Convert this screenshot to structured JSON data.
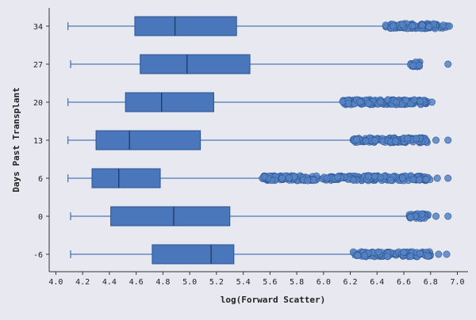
{
  "chart_data": {
    "type": "boxplot",
    "orientation": "horizontal",
    "xlabel": "log(Forward Scatter)",
    "ylabel": "Days Past Transplant",
    "xlim": [
      3.95,
      7.08
    ],
    "x_ticks": [
      "4.0",
      "4.2",
      "4.4",
      "4.6",
      "4.8",
      "5.0",
      "5.2",
      "5.4",
      "5.6",
      "5.8",
      "6.0",
      "6.2",
      "6.4",
      "6.6",
      "6.8",
      "7.0"
    ],
    "categories": [
      "34",
      "27",
      "20",
      "13",
      "6",
      "0",
      "-6"
    ],
    "box_color": "#4a77bb",
    "edge_color": "#2b5593",
    "background": "#e8e8f0",
    "boxes": [
      {
        "label": "34",
        "whisker_low": 4.09,
        "q1": 4.59,
        "median": 4.89,
        "q3": 5.35,
        "whisker_high": 6.46,
        "outliers": {
          "dense_from": 6.46,
          "dense_to": 6.93,
          "sparse": [
            6.94
          ]
        }
      },
      {
        "label": "27",
        "whisker_low": 4.11,
        "q1": 4.63,
        "median": 4.98,
        "q3": 5.45,
        "whisker_high": 6.65,
        "outliers": {
          "dense_from": 6.65,
          "dense_to": 6.72,
          "sparse": [
            6.93
          ]
        }
      },
      {
        "label": "20",
        "whisker_low": 4.09,
        "q1": 4.52,
        "median": 4.79,
        "q3": 5.18,
        "whisker_high": 6.14,
        "outliers": {
          "dense_from": 6.14,
          "dense_to": 6.78,
          "sparse": [
            6.81
          ]
        }
      },
      {
        "label": "13",
        "whisker_low": 4.09,
        "q1": 4.3,
        "median": 4.55,
        "q3": 5.08,
        "whisker_high": 6.22,
        "outliers": {
          "dense_from": 6.22,
          "dense_to": 6.78,
          "sparse": [
            6.84,
            6.93
          ]
        }
      },
      {
        "label": "6",
        "whisker_low": 4.09,
        "q1": 4.27,
        "median": 4.47,
        "q3": 4.78,
        "whisker_high": 5.54,
        "outliers": {
          "dense_from": 5.54,
          "dense_to": 6.8,
          "sparse": [
            6.85,
            6.93
          ]
        }
      },
      {
        "label": "0",
        "whisker_low": 4.11,
        "q1": 4.41,
        "median": 4.88,
        "q3": 5.3,
        "whisker_high": 6.63,
        "outliers": {
          "dense_from": 6.63,
          "dense_to": 6.78,
          "sparse": [
            6.84,
            6.93
          ]
        }
      },
      {
        "label": "-6",
        "whisker_low": 4.11,
        "q1": 4.72,
        "median": 5.16,
        "q3": 5.33,
        "whisker_high": 6.22,
        "outliers": {
          "dense_from": 6.22,
          "dense_to": 6.8,
          "sparse": [
            6.86,
            6.92
          ]
        }
      }
    ]
  }
}
